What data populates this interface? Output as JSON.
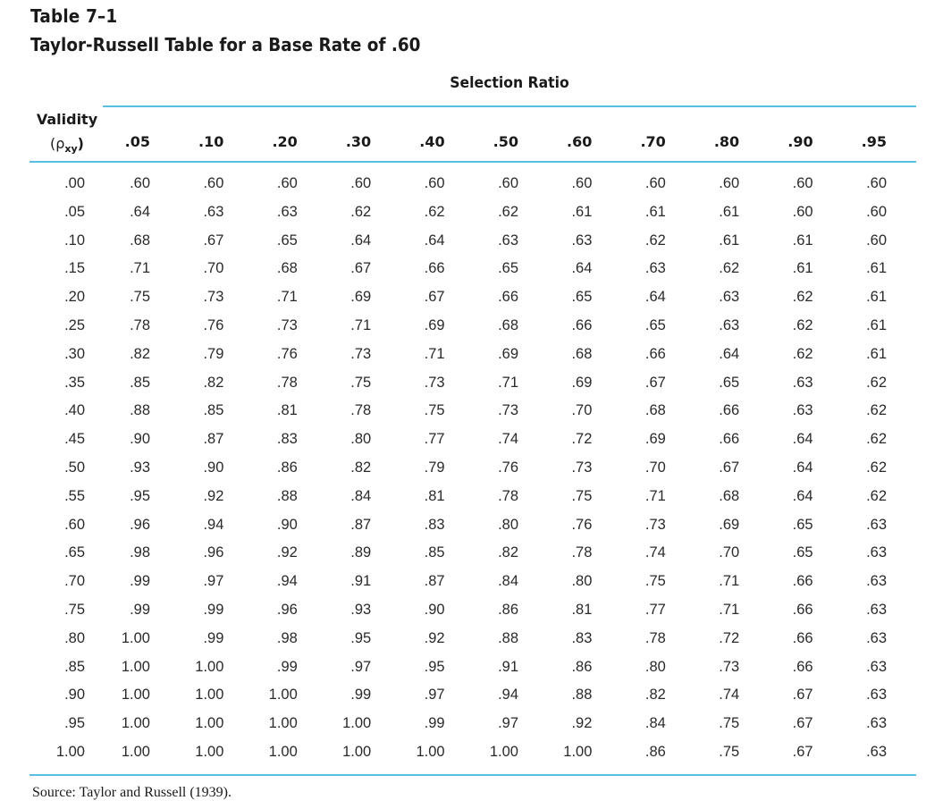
{
  "table_label": "Table 7–1",
  "table_title": "Taylor-Russell Table for a Base Rate of .60",
  "spanner": "Selection Ratio",
  "validity_header": {
    "line1": "Validity",
    "symbol": "(ρ",
    "subscript": "xy",
    "close": ")"
  },
  "columns": [
    ".05",
    ".10",
    ".20",
    ".30",
    ".40",
    ".50",
    ".60",
    ".70",
    ".80",
    ".90",
    ".95"
  ],
  "rows": [
    {
      "validity": ".00",
      "values": [
        ".60",
        ".60",
        ".60",
        ".60",
        ".60",
        ".60",
        ".60",
        ".60",
        ".60",
        ".60",
        ".60"
      ]
    },
    {
      "validity": ".05",
      "values": [
        ".64",
        ".63",
        ".63",
        ".62",
        ".62",
        ".62",
        ".61",
        ".61",
        ".61",
        ".60",
        ".60"
      ]
    },
    {
      "validity": ".10",
      "values": [
        ".68",
        ".67",
        ".65",
        ".64",
        ".64",
        ".63",
        ".63",
        ".62",
        ".61",
        ".61",
        ".60"
      ]
    },
    {
      "validity": ".15",
      "values": [
        ".71",
        ".70",
        ".68",
        ".67",
        ".66",
        ".65",
        ".64",
        ".63",
        ".62",
        ".61",
        ".61"
      ]
    },
    {
      "validity": ".20",
      "values": [
        ".75",
        ".73",
        ".71",
        ".69",
        ".67",
        ".66",
        ".65",
        ".64",
        ".63",
        ".62",
        ".61"
      ]
    },
    {
      "validity": ".25",
      "values": [
        ".78",
        ".76",
        ".73",
        ".71",
        ".69",
        ".68",
        ".66",
        ".65",
        ".63",
        ".62",
        ".61"
      ]
    },
    {
      "validity": ".30",
      "values": [
        ".82",
        ".79",
        ".76",
        ".73",
        ".71",
        ".69",
        ".68",
        ".66",
        ".64",
        ".62",
        ".61"
      ]
    },
    {
      "validity": ".35",
      "values": [
        ".85",
        ".82",
        ".78",
        ".75",
        ".73",
        ".71",
        ".69",
        ".67",
        ".65",
        ".63",
        ".62"
      ]
    },
    {
      "validity": ".40",
      "values": [
        ".88",
        ".85",
        ".81",
        ".78",
        ".75",
        ".73",
        ".70",
        ".68",
        ".66",
        ".63",
        ".62"
      ]
    },
    {
      "validity": ".45",
      "values": [
        ".90",
        ".87",
        ".83",
        ".80",
        ".77",
        ".74",
        ".72",
        ".69",
        ".66",
        ".64",
        ".62"
      ]
    },
    {
      "validity": ".50",
      "values": [
        ".93",
        ".90",
        ".86",
        ".82",
        ".79",
        ".76",
        ".73",
        ".70",
        ".67",
        ".64",
        ".62"
      ]
    },
    {
      "validity": ".55",
      "values": [
        ".95",
        ".92",
        ".88",
        ".84",
        ".81",
        ".78",
        ".75",
        ".71",
        ".68",
        ".64",
        ".62"
      ]
    },
    {
      "validity": ".60",
      "values": [
        ".96",
        ".94",
        ".90",
        ".87",
        ".83",
        ".80",
        ".76",
        ".73",
        ".69",
        ".65",
        ".63"
      ]
    },
    {
      "validity": ".65",
      "values": [
        ".98",
        ".96",
        ".92",
        ".89",
        ".85",
        ".82",
        ".78",
        ".74",
        ".70",
        ".65",
        ".63"
      ]
    },
    {
      "validity": ".70",
      "values": [
        ".99",
        ".97",
        ".94",
        ".91",
        ".87",
        ".84",
        ".80",
        ".75",
        ".71",
        ".66",
        ".63"
      ]
    },
    {
      "validity": ".75",
      "values": [
        ".99",
        ".99",
        ".96",
        ".93",
        ".90",
        ".86",
        ".81",
        ".77",
        ".71",
        ".66",
        ".63"
      ]
    },
    {
      "validity": ".80",
      "values": [
        "1.00",
        ".99",
        ".98",
        ".95",
        ".92",
        ".88",
        ".83",
        ".78",
        ".72",
        ".66",
        ".63"
      ]
    },
    {
      "validity": ".85",
      "values": [
        "1.00",
        "1.00",
        ".99",
        ".97",
        ".95",
        ".91",
        ".86",
        ".80",
        ".73",
        ".66",
        ".63"
      ]
    },
    {
      "validity": ".90",
      "values": [
        "1.00",
        "1.00",
        "1.00",
        ".99",
        ".97",
        ".94",
        ".88",
        ".82",
        ".74",
        ".67",
        ".63"
      ]
    },
    {
      "validity": ".95",
      "values": [
        "1.00",
        "1.00",
        "1.00",
        "1.00",
        ".99",
        ".97",
        ".92",
        ".84",
        ".75",
        ".67",
        ".63"
      ]
    },
    {
      "validity": "1.00",
      "values": [
        "1.00",
        "1.00",
        "1.00",
        "1.00",
        "1.00",
        "1.00",
        "1.00",
        ".86",
        ".75",
        ".67",
        ".63"
      ]
    }
  ],
  "source": "Source: Taylor and Russell (1939).",
  "colors": {
    "rule": "#5bbde0",
    "text": "#1a1a1a"
  }
}
